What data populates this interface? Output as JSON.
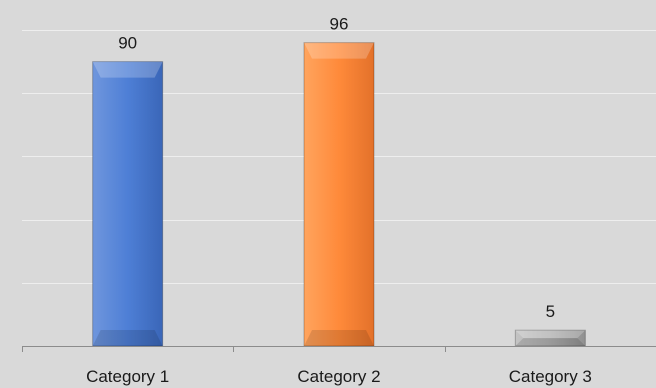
{
  "chart_data": {
    "type": "bar",
    "title": "",
    "xlabel": "",
    "ylabel": "",
    "categories": [
      "Category 1",
      "Category 2",
      "Category 3"
    ],
    "values": [
      90,
      96,
      5
    ],
    "data_labels": [
      "90",
      "96",
      "5"
    ],
    "ylim": [
      0,
      100
    ],
    "grid": true,
    "legend": "none",
    "colors": [
      "#4472c4",
      "#ed7d31",
      "#a5a5a5"
    ],
    "background": "#d9d9d9"
  }
}
